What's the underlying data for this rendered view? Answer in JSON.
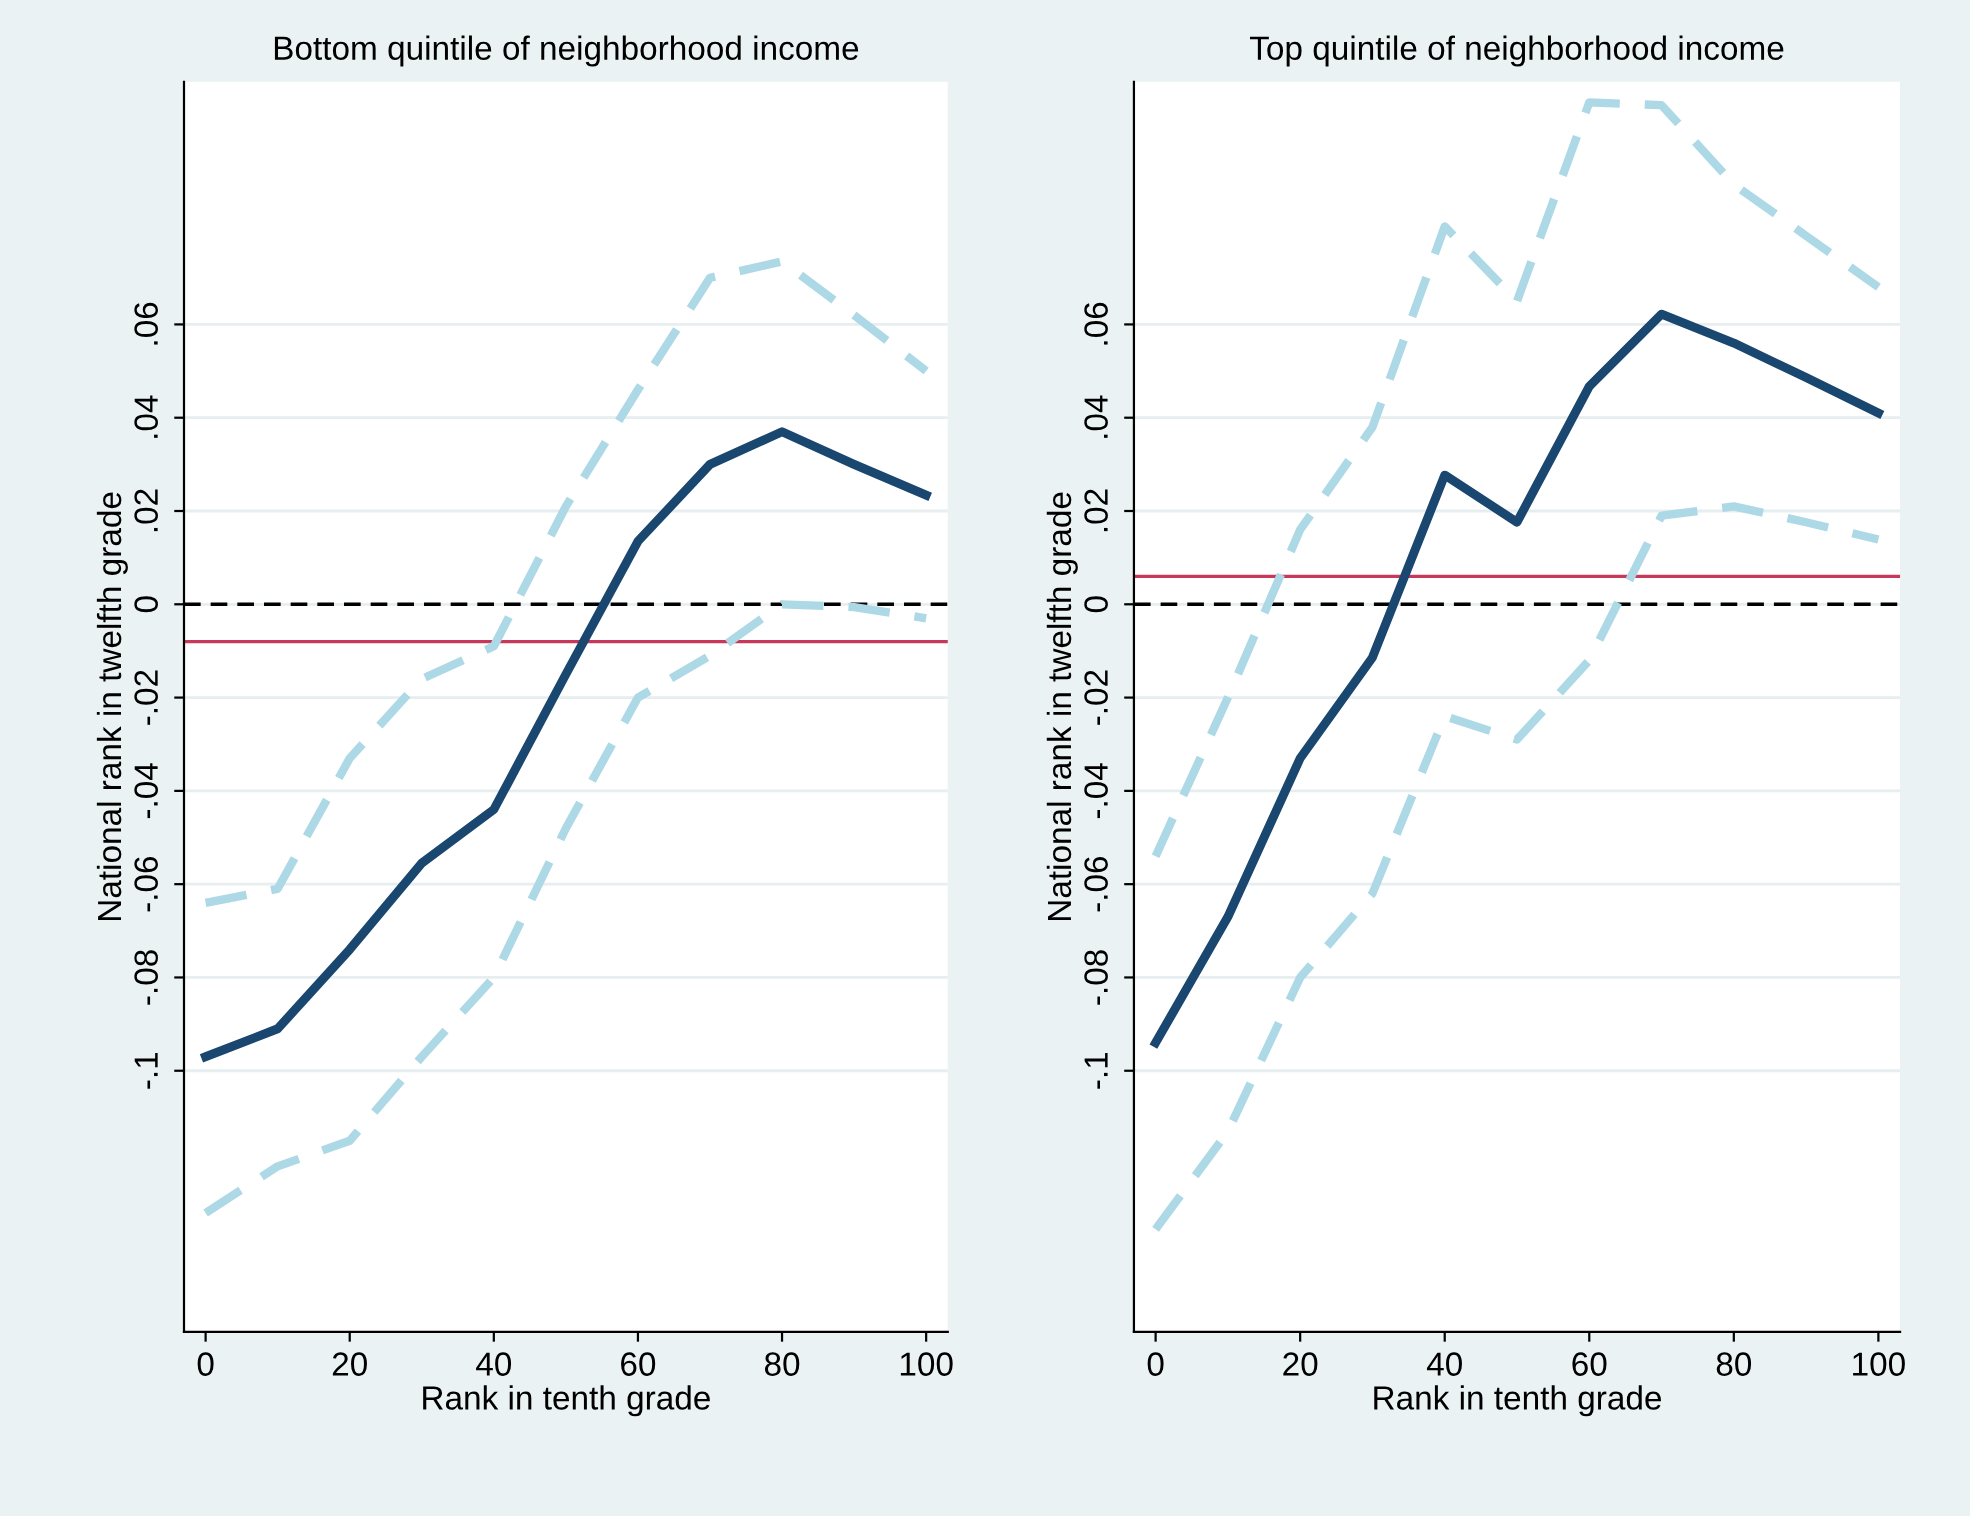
{
  "chart_data": [
    {
      "type": "line",
      "title": "Bottom quintile of neighborhood income",
      "xlabel": "Rank in tenth grade",
      "ylabel": "National rank in twelfth grade",
      "x": [
        0,
        10,
        20,
        30,
        40,
        50,
        60,
        70,
        80,
        90,
        100
      ],
      "series": [
        {
          "color": "#add8e6",
          "line_style": "dashed",
          "values": [
            -0.064,
            -0.061,
            -0.033,
            -0.016,
            -0.009,
            0.021,
            0.046,
            0.07,
            0.0735,
            0.062,
            0.05
          ]
        },
        {
          "color": "#add8e6",
          "line_style": "dashed",
          "values": [
            -0.1305,
            -0.1205,
            -0.115,
            -0.097,
            -0.08,
            -0.048,
            -0.02,
            -0.011,
            0.0,
            -0.0006,
            -0.003
          ]
        },
        {
          "color": "#1a476f",
          "line_style": "solid",
          "values": [
            -0.097,
            -0.091,
            -0.074,
            -0.0555,
            -0.044,
            -0.015,
            0.0135,
            0.03,
            0.037,
            0.03,
            0.0234
          ]
        }
      ],
      "xlim": [
        -3,
        103
      ],
      "xticks": [
        0,
        20,
        40,
        60,
        80,
        100
      ],
      "ylim": [
        -0.156,
        0.112
      ],
      "yticks": [
        {
          "value": -0.1,
          "label": "-.1"
        },
        {
          "value": -0.08,
          "label": "-.08"
        },
        {
          "value": -0.06,
          "label": "-.06"
        },
        {
          "value": -0.04,
          "label": "-.04"
        },
        {
          "value": -0.02,
          "label": "-.02"
        },
        0,
        {
          "value": 0.02,
          "label": ".02"
        },
        {
          "value": 0.04,
          "label": ".04"
        },
        {
          "value": 0.06,
          "label": ".06"
        }
      ],
      "ref_lines": [
        {
          "axis": "y",
          "value": 0,
          "color": "#000000",
          "line_style": "dashed"
        },
        {
          "axis": "y",
          "value": -0.008,
          "color": "#c8385a",
          "line_style": "solid"
        }
      ],
      "grid": "y"
    },
    {
      "type": "line",
      "title": "Top quintile of neighborhood income",
      "xlabel": "Rank in tenth grade",
      "ylabel": "National rank in twelfth grade",
      "x": [
        0,
        10,
        20,
        30,
        40,
        50,
        60,
        70,
        80,
        90,
        100
      ],
      "series": [
        {
          "color": "#add8e6",
          "line_style": "dashed",
          "values": [
            -0.054,
            -0.02,
            0.016,
            0.038,
            0.081,
            0.065,
            0.1076,
            0.107,
            0.09,
            0.079,
            0.068
          ]
        },
        {
          "color": "#add8e6",
          "line_style": "dashed",
          "values": [
            -0.134,
            -0.113,
            -0.08,
            -0.062,
            -0.024,
            -0.029,
            -0.012,
            0.019,
            0.021,
            0.0176,
            0.0139
          ]
        },
        {
          "color": "#1a476f",
          "line_style": "solid",
          "values": [
            -0.094,
            -0.067,
            -0.033,
            -0.0114,
            0.0277,
            0.0176,
            0.0467,
            0.0622,
            0.056,
            0.0486,
            0.041
          ]
        }
      ],
      "xlim": [
        -3,
        103
      ],
      "xticks": [
        0,
        20,
        40,
        60,
        80,
        100
      ],
      "ylim": [
        -0.156,
        0.112
      ],
      "yticks": [
        {
          "value": -0.1,
          "label": "-.1"
        },
        {
          "value": -0.08,
          "label": "-.08"
        },
        {
          "value": -0.06,
          "label": "-.06"
        },
        {
          "value": -0.04,
          "label": "-.04"
        },
        {
          "value": -0.02,
          "label": "-.02"
        },
        0,
        {
          "value": 0.02,
          "label": ".02"
        },
        {
          "value": 0.04,
          "label": ".04"
        },
        {
          "value": 0.06,
          "label": ".06"
        }
      ],
      "ref_lines": [
        {
          "axis": "y",
          "value": 0,
          "color": "#000000",
          "line_style": "dashed"
        },
        {
          "axis": "y",
          "value": 0.006,
          "color": "#c8385a",
          "line_style": "solid"
        }
      ],
      "grid": "y"
    }
  ]
}
